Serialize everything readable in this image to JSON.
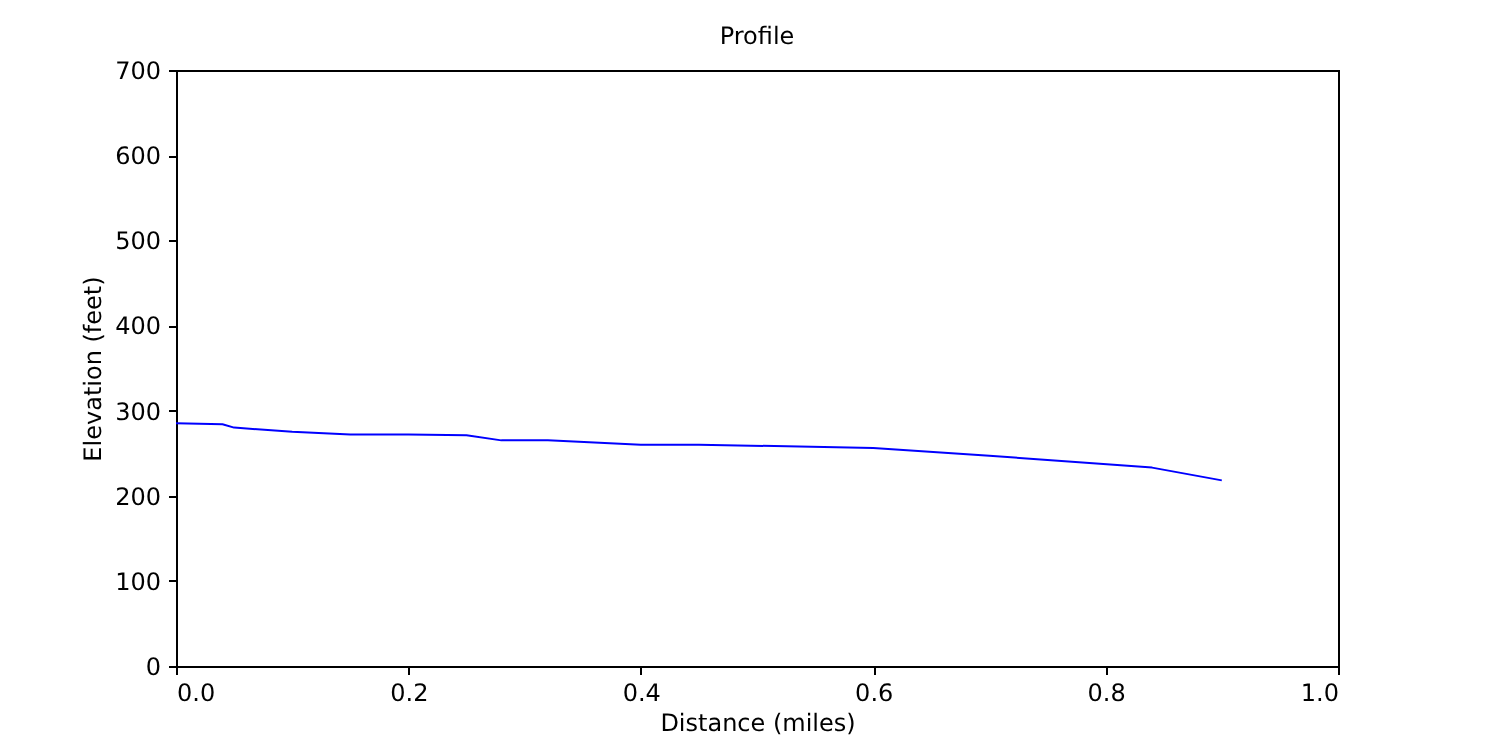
{
  "chart_data": {
    "type": "line",
    "title": "Profile",
    "xlabel": "Distance (miles)",
    "ylabel": "Elevation (feet)",
    "x": [
      0,
      0.04,
      0.05,
      0.1,
      0.15,
      0.2,
      0.25,
      0.28,
      0.32,
      0.4,
      0.45,
      0.6,
      0.7,
      0.75,
      0.84,
      0.9
    ],
    "series": [
      {
        "color": "#0000ff",
        "values": [
          285,
          284,
          280,
          275,
          272,
          272,
          271,
          265,
          265,
          260,
          260,
          256,
          247,
          242,
          233,
          218
        ]
      }
    ],
    "xlim": [
      0,
      1
    ],
    "ylim": [
      0,
      700
    ],
    "xticks": [
      {
        "value": 0,
        "label": "0.0"
      },
      0.2,
      0.4,
      0.6,
      0.8,
      {
        "value": 1,
        "label": "1.0"
      }
    ],
    "yticks": [
      0,
      100,
      200,
      300,
      400,
      500,
      600,
      700
    ],
    "grid": false,
    "line_style": "solid",
    "marker": "none"
  }
}
